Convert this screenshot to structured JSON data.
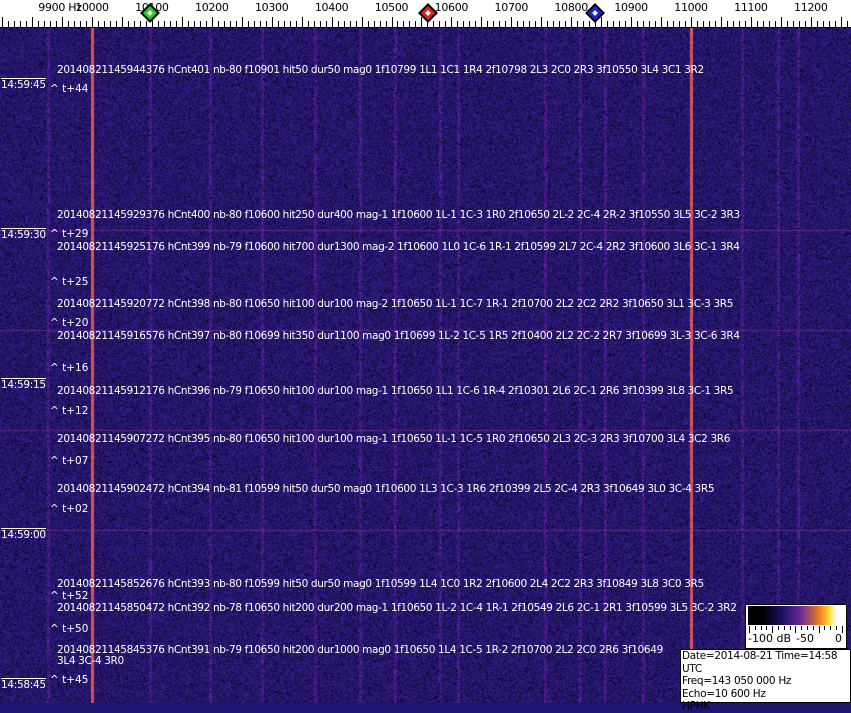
{
  "axis": {
    "unit_label": "9900 Hz",
    "labels": [
      "10000",
      "10100",
      "10200",
      "10300",
      "10400",
      "10500",
      "10600",
      "10700",
      "10800",
      "10900",
      "11000",
      "11100",
      "11200"
    ],
    "markers": [
      {
        "name": "green-marker",
        "color": "#22cc22",
        "freq": 10097
      },
      {
        "name": "red-marker",
        "color": "#dd2222",
        "freq": 10561
      },
      {
        "name": "blue-marker",
        "color": "#1a2ad0",
        "freq": 10840
      }
    ]
  },
  "waterfall": {
    "background_color": "#1c1670",
    "strong_line_color": "#d86040",
    "time_labels": [
      "14:59:45",
      "14:59:30",
      "14:59:15",
      "14:59:00",
      "14:58:45"
    ],
    "offset_labels": [
      "^ t+44",
      "^ t+29",
      "^ t+25",
      "^ t+20",
      "^ t+16",
      "^ t+12",
      "^ t+07",
      "^ t+02",
      "^ t+52",
      "^ t+50",
      "^ t+45"
    ],
    "detections": [
      "20140821145944376 hCnt401 nb-80 f10901 hit50 dur50 mag0 1f10799 1L1 1C1 1R4 2f10798 2L3 2C0 2R3 3f10550 3L4 3C1 3R2",
      "20140821145929376 hCnt400 nb-80 f10600 hit250 dur400 mag-1 1f10600 1L-1 1C-3 1R0 2f10650 2L-2 2C-4 2R-2 3f10550 3L5 3C-2 3R3",
      "20140821145925176 hCnt399 nb-79 f10600 hit700 dur1300 mag-2 1f10600 1L0 1C-6 1R-1 2f10599 2L7 2C-4 2R2 3f10600 3L6 3C-1 3R4",
      "20140821145920772 hCnt398 nb-80 f10650 hit100 dur100 mag-2 1f10650 1L-1 1C-7 1R-1 2f10700 2L2 2C2 2R2 3f10650 3L1 3C-3 3R5",
      "20140821145916576 hCnt397 nb-80 f10699 hit350 dur1100 mag0 1f10699 1L-2 1C-5 1R5 2f10400 2L2 2C-2 2R7 3f10699 3L-3 3C-6 3R4",
      "20140821145912176 hCnt396 nb-79 f10650 hit100 dur100 mag-1 1f10650 1L1 1C-6 1R-4 2f10301 2L6 2C-1 2R6 3f10399 3L8 3C-1 3R5",
      "20140821145907272 hCnt395 nb-80 f10650 hit100 dur100 mag-1 1f10650 1L-1 1C-5 1R0 2f10650 2L3 2C-3 2R3 3f10700 3L4 3C2 3R6",
      "20140821145902472 hCnt394 nb-81 f10599 hit50 dur50 mag0 1f10600 1L3 1C-3 1R6 2f10399 2L5 2C-4 2R3 3f10649 3L0 3C-4 3R5",
      "20140821145852676 hCnt393 nb-80 f10599 hit50 dur50 mag0 1f10599 1L4 1C0 1R2 2f10600 2L4 2C2 2R3 3f10849 3L8 3C0 3R5",
      "20140821145850472 hCnt392 nb-78 f10650 hit200 dur200 mag-1 1f10650 1L-2 1C-4 1R-1 2f10549 2L6 2C-1 2R1 3f10599 3L5 3C-2 3R2",
      "20140821145845376 hCnt391 nb-79 f10650 hit200 dur1000 mag0 1f10650 1L4 1C-5 1R-2 2f10700 2L2 2C0 2R6 3f10649 3L4 3C-4 3R0"
    ]
  },
  "colorbar": {
    "labels": [
      "-100 dB",
      "-50",
      "0"
    ]
  },
  "info": {
    "date_time": "Date=2014-08-21 Time=14:58 UTC",
    "freq": "Freq=143 050 000 Hz",
    "echo": "Echo=10 600 Hz",
    "station": "HPHK"
  }
}
